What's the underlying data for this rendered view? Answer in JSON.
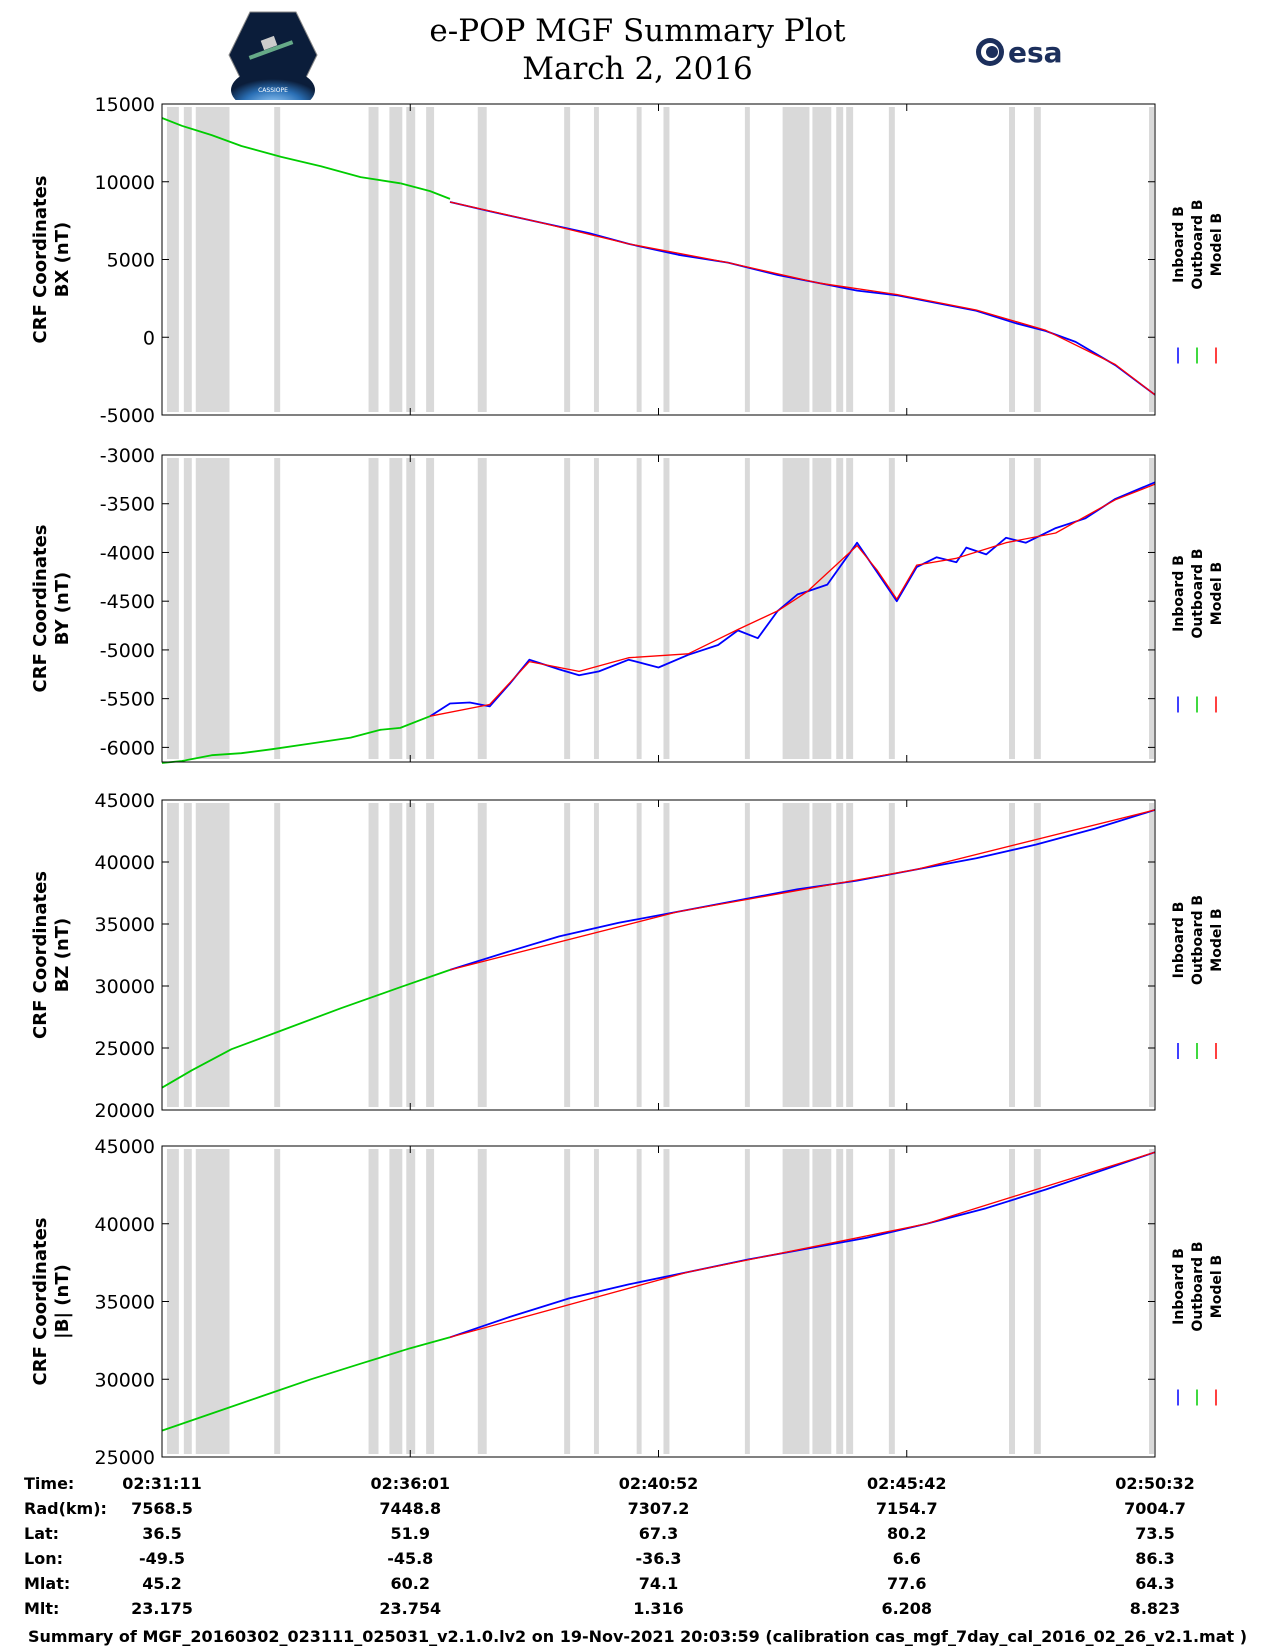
{
  "header": {
    "title_line1": "e-POP MGF Summary Plot",
    "title_line2": "March 2, 2016",
    "logo_left_text": "CASSIOPE",
    "logo_right_text": "esa"
  },
  "colors": {
    "inboard": "#0000ff",
    "outboard": "#00cc00",
    "model": "#ff0000",
    "gap": "#d9d9d9"
  },
  "legend": [
    "Inboard B",
    "Outboard B",
    "Model B"
  ],
  "chart_data": [
    {
      "type": "line",
      "ylabel_line1": "CRF Coordinates",
      "ylabel_line2": "BX (nT)",
      "ylim": [
        -5000,
        15000
      ],
      "yticks": [
        15000,
        10000,
        5000,
        0,
        -5000
      ],
      "ytick_labels": [
        "15000",
        "10000",
        "5000",
        "0",
        "-5000"
      ],
      "series": [
        {
          "name": "Outboard B",
          "x": [
            0,
            2,
            5,
            8,
            12,
            16,
            20,
            24
          ],
          "y": [
            14100,
            13600,
            13000,
            12300,
            11600,
            11000,
            10300,
            9900
          ]
        },
        {
          "name": "Outboard B (cont.)",
          "x": [
            24,
            27,
            29
          ],
          "y": [
            9900,
            9400,
            8900
          ]
        },
        {
          "name": "Inboard B",
          "x": [
            29,
            33,
            38,
            43,
            47,
            52,
            57,
            62,
            66,
            70,
            74,
            78,
            82,
            86,
            89,
            92,
            96,
            100
          ],
          "y": [
            8700,
            8100,
            7400,
            6700,
            6000,
            5300,
            4800,
            4000,
            3500,
            3000,
            2700,
            2200,
            1700,
            900,
            400,
            -300,
            -1800,
            -3700
          ]
        },
        {
          "name": "Model B",
          "x": [
            29,
            38,
            47,
            57,
            66,
            74,
            82,
            89,
            96,
            100
          ],
          "y": [
            8700,
            7400,
            6000,
            4800,
            3500,
            2750,
            1750,
            450,
            -1750,
            -3700
          ]
        }
      ]
    },
    {
      "type": "line",
      "ylabel_line1": "CRF Coordinates",
      "ylabel_line2": "BY (nT)",
      "ylim": [
        -6150,
        -3000
      ],
      "yticks": [
        -3000,
        -3500,
        -4000,
        -4500,
        -5000,
        -5500,
        -6000
      ],
      "ytick_labels": [
        "-3000",
        "-3500",
        "-4000",
        "-4500",
        "-5000",
        "-5500",
        "-6000"
      ],
      "series": [
        {
          "name": "Outboard B",
          "x": [
            0,
            2,
            5,
            8,
            11,
            15,
            19,
            22,
            24,
            27
          ],
          "y": [
            -6160,
            -6140,
            -6080,
            -6060,
            -6020,
            -5960,
            -5900,
            -5820,
            -5800,
            -5680
          ]
        },
        {
          "name": "Inboard B",
          "x": [
            27,
            29,
            31,
            33,
            35,
            37,
            40,
            42,
            44,
            47,
            50,
            53,
            56,
            58,
            60,
            62,
            64,
            65,
            67,
            70,
            72,
            74,
            76,
            78,
            80,
            81,
            83,
            85,
            87,
            90,
            93,
            96,
            100
          ],
          "y": [
            -5680,
            -5550,
            -5540,
            -5580,
            -5350,
            -5100,
            -5200,
            -5260,
            -5220,
            -5100,
            -5180,
            -5050,
            -4950,
            -4800,
            -4880,
            -4600,
            -4430,
            -4400,
            -4330,
            -3900,
            -4200,
            -4500,
            -4150,
            -4050,
            -4100,
            -3950,
            -4020,
            -3850,
            -3900,
            -3750,
            -3650,
            -3450,
            -3280
          ]
        },
        {
          "name": "Model B",
          "x": [
            27,
            33,
            37,
            42,
            47,
            53,
            58,
            62,
            65,
            70,
            72,
            74,
            76,
            80,
            85,
            90,
            96,
            100
          ],
          "y": [
            -5680,
            -5560,
            -5120,
            -5220,
            -5080,
            -5040,
            -4790,
            -4600,
            -4400,
            -3930,
            -4180,
            -4480,
            -4130,
            -4060,
            -3900,
            -3800,
            -3460,
            -3300
          ]
        }
      ]
    },
    {
      "type": "line",
      "ylabel_line1": "CRF Coordinates",
      "ylabel_line2": "BZ (nT)",
      "ylim": [
        20000,
        45000
      ],
      "yticks": [
        45000,
        40000,
        35000,
        30000,
        25000,
        20000
      ],
      "ytick_labels": [
        "45000",
        "40000",
        "35000",
        "30000",
        "25000",
        "20000"
      ],
      "series": [
        {
          "name": "Outboard B",
          "x": [
            0,
            3,
            7,
            12,
            18,
            24,
            29
          ],
          "y": [
            21800,
            23200,
            24900,
            26400,
            28200,
            29900,
            31300
          ]
        },
        {
          "name": "Inboard B",
          "x": [
            29,
            35,
            40,
            46,
            52,
            58,
            64,
            70,
            76,
            82,
            88,
            94,
            100
          ],
          "y": [
            31300,
            32800,
            34000,
            35100,
            36000,
            36900,
            37800,
            38500,
            39400,
            40300,
            41400,
            42700,
            44200
          ]
        },
        {
          "name": "Model B",
          "x": [
            29,
            52,
            76,
            100
          ],
          "y": [
            31300,
            36000,
            39400,
            44200
          ]
        }
      ]
    },
    {
      "type": "line",
      "ylabel_line1": "CRF Coordinates",
      "ylabel_line2": "|B| (nT)",
      "ylim": [
        25000,
        45000
      ],
      "yticks": [
        45000,
        40000,
        35000,
        30000,
        25000
      ],
      "ytick_labels": [
        "45000",
        "40000",
        "35000",
        "30000",
        "25000"
      ],
      "series": [
        {
          "name": "Outboard B",
          "x": [
            0,
            5,
            10,
            15,
            20,
            25,
            29
          ],
          "y": [
            26700,
            27800,
            28900,
            30000,
            31000,
            32000,
            32700
          ]
        },
        {
          "name": "Inboard B",
          "x": [
            29,
            35,
            41,
            47,
            53,
            59,
            65,
            71,
            77,
            83,
            89,
            95,
            100
          ],
          "y": [
            32700,
            34000,
            35200,
            36100,
            36900,
            37700,
            38400,
            39100,
            40000,
            41000,
            42200,
            43500,
            44600
          ]
        },
        {
          "name": "Model B",
          "x": [
            29,
            53,
            77,
            100
          ],
          "y": [
            32700,
            36900,
            40000,
            44600
          ]
        }
      ]
    }
  ],
  "gaps_pct": [
    [
      0.5,
      1.7
    ],
    [
      2.2,
      3.0
    ],
    [
      3.4,
      6.8
    ],
    [
      11.3,
      11.9
    ],
    [
      20.8,
      21.8
    ],
    [
      22.9,
      24.2
    ],
    [
      24.6,
      25.5
    ],
    [
      26.6,
      27.4
    ],
    [
      31.8,
      32.7
    ],
    [
      40.5,
      41.1
    ],
    [
      43.5,
      44.0
    ],
    [
      47.8,
      48.3
    ],
    [
      50.5,
      51.1
    ],
    [
      58.7,
      59.2
    ],
    [
      62.5,
      65.2
    ],
    [
      65.5,
      67.4
    ],
    [
      67.9,
      68.6
    ],
    [
      68.9,
      69.6
    ],
    [
      73.2,
      73.8
    ],
    [
      85.3,
      85.9
    ],
    [
      87.8,
      88.5
    ],
    [
      99.4,
      99.9
    ]
  ],
  "xticks_pct": [
    0,
    25,
    50,
    75,
    100
  ],
  "ephemeris": {
    "labels": [
      "Time:",
      "Rad(km):",
      "Lat:",
      "Lon:",
      "Mlat:",
      "Mlt:"
    ],
    "columns": [
      [
        "02:31:11",
        "7568.5",
        "36.5",
        "-49.5",
        "45.2",
        "23.175"
      ],
      [
        "02:36:01",
        "7448.8",
        "51.9",
        "-45.8",
        "60.2",
        "23.754"
      ],
      [
        "02:40:52",
        "7307.2",
        "67.3",
        "-36.3",
        "74.1",
        "1.316"
      ],
      [
        "02:45:42",
        "7154.7",
        "80.2",
        "6.6",
        "77.6",
        "6.208"
      ],
      [
        "02:50:32",
        "7004.7",
        "73.5",
        "86.3",
        "64.3",
        "8.823"
      ]
    ]
  },
  "footer": "Summary of MGF_20160302_023111_025031_v2.1.0.lv2 on 19-Nov-2021 20:03:59 (calibration cas_mgf_7day_cal_2016_02_26_v2.1.mat )"
}
